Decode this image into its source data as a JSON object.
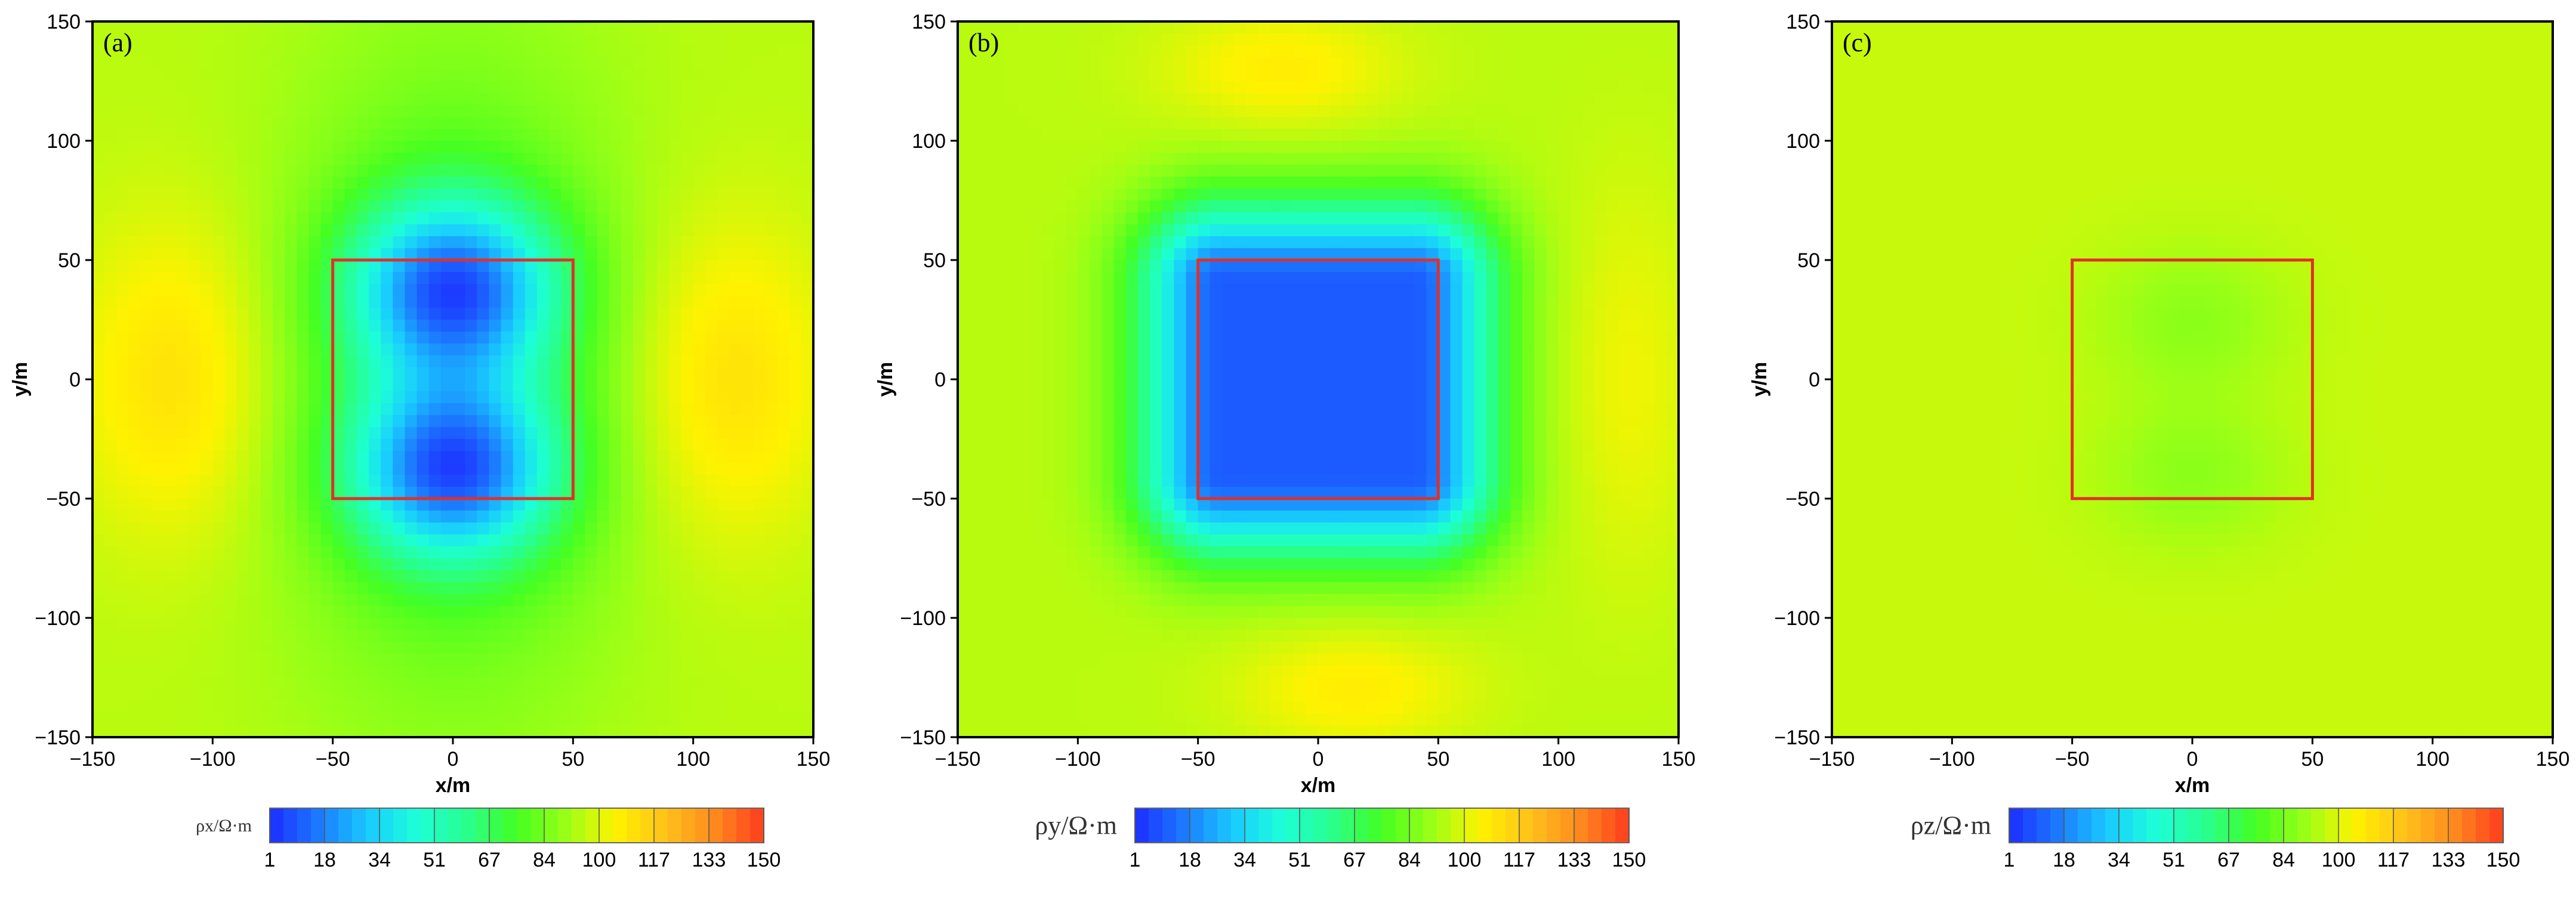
{
  "chart_data": [
    {
      "type": "heatmap",
      "panel_label": "(a)",
      "xlabel": "x/m",
      "ylabel": "y/m",
      "xlim": [
        -150,
        150
      ],
      "ylim": [
        -150,
        150
      ],
      "xticks": [
        -150,
        -100,
        -50,
        0,
        50,
        100,
        150
      ],
      "yticks": [
        -150,
        -100,
        -50,
        0,
        50,
        100,
        150
      ],
      "pattern": "x-polarized",
      "background_value": 95,
      "anomaly_box": {
        "x": [
          -50,
          50
        ],
        "y": [
          -50,
          50
        ]
      },
      "colorbar": {
        "label": "ρx/Ω·m",
        "ticks": [
          "1",
          "18",
          "34",
          "51",
          "67",
          "84",
          "100",
          "117",
          "133",
          "150"
        ],
        "range": [
          1,
          150
        ]
      }
    },
    {
      "type": "heatmap",
      "panel_label": "(b)",
      "xlabel": "x/m",
      "ylabel": "y/m",
      "xlim": [
        -150,
        150
      ],
      "ylim": [
        -150,
        150
      ],
      "xticks": [
        -150,
        -100,
        -50,
        0,
        50,
        100,
        150
      ],
      "yticks": [
        -150,
        -100,
        -50,
        0,
        50,
        100,
        150
      ],
      "pattern": "y-polarized",
      "background_value": 95,
      "anomaly_box": {
        "x": [
          -50,
          50
        ],
        "y": [
          -50,
          50
        ]
      },
      "colorbar": {
        "label": "ρy/Ω·m",
        "ticks": [
          "1",
          "18",
          "34",
          "51",
          "67",
          "84",
          "100",
          "117",
          "133",
          "150"
        ],
        "range": [
          1,
          150
        ]
      }
    },
    {
      "type": "heatmap",
      "panel_label": "(c)",
      "xlabel": "x/m",
      "ylabel": "y/m",
      "xlim": [
        -150,
        150
      ],
      "ylim": [
        -150,
        150
      ],
      "xticks": [
        -150,
        -100,
        -50,
        0,
        50,
        100,
        150
      ],
      "yticks": [
        -150,
        -100,
        -50,
        0,
        50,
        100,
        150
      ],
      "pattern": "z-polarized",
      "background_value": 95,
      "anomaly_box": {
        "x": [
          -50,
          50
        ],
        "y": [
          -50,
          50
        ]
      },
      "colorbar": {
        "label": "ρz/Ω·m",
        "ticks": [
          "1",
          "18",
          "34",
          "51",
          "67",
          "84",
          "100",
          "117",
          "133",
          "150"
        ],
        "range": [
          1,
          150
        ]
      }
    }
  ],
  "colormap": [
    "#1c2cff",
    "#1c7aff",
    "#19ccff",
    "#1dffd8",
    "#28ff8c",
    "#44ff22",
    "#9aff16",
    "#fff200",
    "#ffc21a",
    "#ff8a1e",
    "#ff3c1e"
  ],
  "box_color": "#e0302a"
}
